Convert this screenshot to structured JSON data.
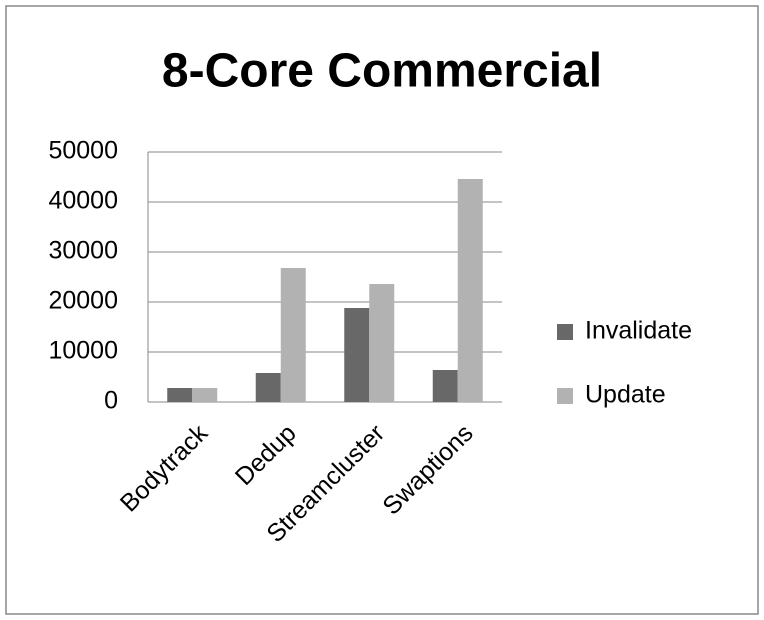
{
  "chart_data": {
    "type": "bar",
    "title": "8-Core Commercial",
    "categories": [
      "Bodytrack",
      "Dedup",
      "Streamcluster",
      "Swaptions"
    ],
    "series": [
      {
        "name": "Invalidate",
        "color": "#686868",
        "values": [
          2800,
          5800,
          18800,
          6400
        ]
      },
      {
        "name": "Update",
        "color": "#b2b2b2",
        "values": [
          2800,
          26800,
          23600,
          44600
        ]
      }
    ],
    "ylim": [
      0,
      50000
    ],
    "yticks": [
      0,
      10000,
      20000,
      30000,
      40000,
      50000
    ],
    "grid": true,
    "legend": "right"
  }
}
